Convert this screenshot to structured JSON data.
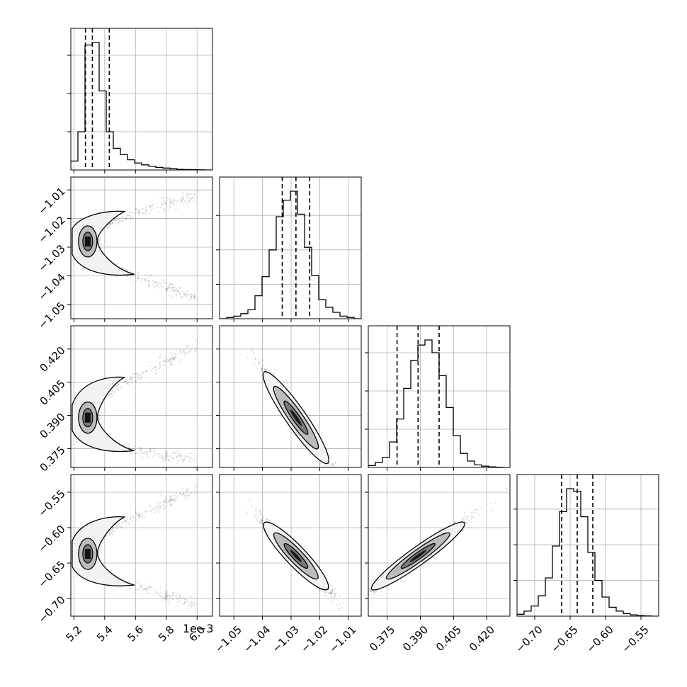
{
  "chart_data": {
    "type": "corner",
    "dimensions": 4,
    "grid": true,
    "offset_text": "1e−3",
    "axes": [
      {
        "range": [
          5.18,
          6.1
        ],
        "ticks": [
          5.2,
          5.4,
          5.6,
          5.8,
          6.0
        ],
        "labels": [
          "5.2",
          "5.4",
          "5.6",
          "5.8",
          "6.0"
        ]
      },
      {
        "range": [
          -1.055,
          -1.0055
        ],
        "ticks": [
          -1.05,
          -1.04,
          -1.03,
          -1.02,
          -1.01
        ],
        "labels": [
          "−1.05",
          "−1.04",
          "−1.03",
          "−1.02",
          "−1.01"
        ]
      },
      {
        "range": [
          0.3665,
          0.4305
        ],
        "ticks": [
          0.375,
          0.39,
          0.405,
          0.42
        ],
        "labels": [
          "0.375",
          "0.390",
          "0.405",
          "0.420"
        ]
      },
      {
        "range": [
          -0.725,
          -0.525
        ],
        "ticks": [
          -0.55,
          -0.6,
          -0.65,
          -0.7
        ],
        "labels": [
          "−0.55",
          "−0.60",
          "−0.65",
          "−0.70"
        ]
      }
    ],
    "x_tick_order": [
      [
        "5.2",
        "5.4",
        "5.6",
        "5.8",
        "6.0"
      ],
      [
        "−1.05",
        "−1.04",
        "−1.03",
        "−1.02",
        "−1.01"
      ],
      [
        "0.375",
        "0.390",
        "0.405",
        "0.420"
      ],
      [
        "−0.70",
        "−0.65",
        "−0.60",
        "−0.55"
      ]
    ],
    "histograms": [
      {
        "edges_start": 5.18,
        "bin_width": 0.046,
        "counts": [
          0.07,
          0.3,
          0.98,
          1.0,
          0.62,
          0.3,
          0.17,
          0.12,
          0.08,
          0.055,
          0.04,
          0.03,
          0.02,
          0.015,
          0.01,
          0.005,
          0.003,
          0.002,
          0.001,
          0.0
        ],
        "quantiles": [
          5.275,
          5.32,
          5.43
        ],
        "y_ticks": [
          0.3,
          0.6,
          0.9
        ]
      },
      {
        "edges_start": -1.055,
        "bin_width": 0.002475,
        "counts": [
          0.0,
          0.01,
          0.02,
          0.04,
          0.07,
          0.18,
          0.33,
          0.54,
          0.8,
          0.93,
          1.0,
          0.82,
          0.56,
          0.34,
          0.15,
          0.09,
          0.05,
          0.02,
          0.01,
          0.0
        ],
        "quantiles": [
          -1.0331,
          -1.0283,
          -1.0235
        ],
        "y_ticks": [
          0.27,
          0.54,
          0.81
        ]
      },
      {
        "edges_start": 0.3665,
        "bin_width": 0.0032,
        "counts": [
          0.015,
          0.04,
          0.08,
          0.2,
          0.38,
          0.62,
          0.84,
          0.96,
          1.0,
          0.9,
          0.72,
          0.47,
          0.25,
          0.11,
          0.05,
          0.02,
          0.01,
          0.005,
          0.002,
          0.0
        ],
        "quantiles": [
          0.3795,
          0.389,
          0.3985
        ],
        "y_ticks": [
          0.3,
          0.6,
          0.9
        ]
      },
      {
        "edges_start": -0.725,
        "bin_width": 0.01,
        "counts": [
          0.015,
          0.04,
          0.08,
          0.16,
          0.3,
          0.55,
          0.82,
          1.0,
          0.98,
          0.78,
          0.5,
          0.28,
          0.15,
          0.07,
          0.04,
          0.02,
          0.01,
          0.005,
          0.002,
          0.0
        ],
        "quantiles": [
          -0.662,
          -0.64,
          -0.618
        ],
        "y_ticks": [
          0.28,
          0.56,
          0.84
        ]
      }
    ],
    "pairs": [
      {
        "row": 1,
        "col": 0,
        "kind": "banana",
        "mode": [
          5.29,
          -1.028
        ],
        "spread": [
          0.04,
          0.0028
        ],
        "upper_arm": [
          [
            5.3,
            -1.024
          ],
          [
            5.5,
            -1.02
          ],
          [
            5.8,
            -1.015
          ],
          [
            6.0,
            -1.012
          ]
        ],
        "lower_arm": [
          [
            5.3,
            -1.033
          ],
          [
            5.5,
            -1.038
          ],
          [
            5.8,
            -1.044
          ],
          [
            6.0,
            -1.048
          ]
        ]
      },
      {
        "row": 2,
        "col": 0,
        "kind": "banana",
        "mode": [
          5.29,
          0.389
        ],
        "spread": [
          0.04,
          0.004
        ],
        "upper_arm": [
          [
            5.3,
            0.396
          ],
          [
            5.5,
            0.404
          ],
          [
            5.8,
            0.414
          ],
          [
            6.0,
            0.422
          ]
        ],
        "lower_arm": [
          [
            5.3,
            0.382
          ],
          [
            5.5,
            0.376
          ],
          [
            5.8,
            0.372
          ],
          [
            6.0,
            0.369
          ]
        ]
      },
      {
        "row": 2,
        "col": 1,
        "kind": "ellipse",
        "center": [
          -1.0283,
          0.389
        ],
        "sx": 0.0055,
        "sy": 0.0105,
        "corr": -0.97
      },
      {
        "row": 3,
        "col": 0,
        "kind": "banana",
        "mode": [
          5.29,
          -0.637
        ],
        "spread": [
          0.04,
          0.012
        ],
        "upper_arm": [
          [
            5.3,
            -0.618
          ],
          [
            5.5,
            -0.595
          ],
          [
            5.8,
            -0.565
          ],
          [
            6.0,
            -0.545
          ]
        ],
        "lower_arm": [
          [
            5.3,
            -0.66
          ],
          [
            5.5,
            -0.675
          ],
          [
            5.8,
            -0.695
          ],
          [
            6.0,
            -0.712
          ]
        ]
      },
      {
        "row": 3,
        "col": 1,
        "kind": "ellipse",
        "center": [
          -1.0283,
          -0.64
        ],
        "sx": 0.0055,
        "sy": 0.024,
        "corr": -0.97
      },
      {
        "row": 3,
        "col": 2,
        "kind": "ellipse",
        "center": [
          0.389,
          -0.64
        ],
        "sx": 0.0105,
        "sy": 0.024,
        "corr": 0.98
      }
    ]
  }
}
